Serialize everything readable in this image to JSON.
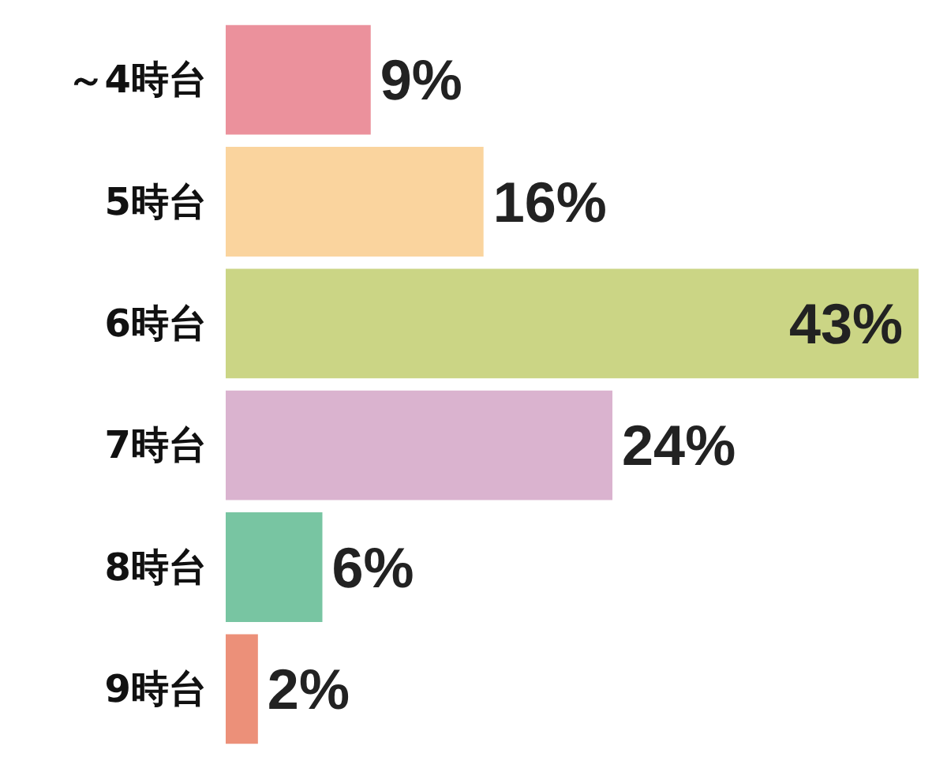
{
  "chart_data": {
    "type": "bar",
    "orientation": "horizontal",
    "categories": [
      "～4時台",
      "5時台",
      "6時台",
      "7時台",
      "8時台",
      "9時台"
    ],
    "values": [
      9,
      16,
      43,
      24,
      6,
      2
    ],
    "colors": [
      "#eb919c",
      "#fad49e",
      "#cbd585",
      "#dab3cf",
      "#78c5a2",
      "#ec9079"
    ],
    "value_labels": [
      "9%",
      "16%",
      "43%",
      "24%",
      "6%",
      "2%"
    ]
  }
}
